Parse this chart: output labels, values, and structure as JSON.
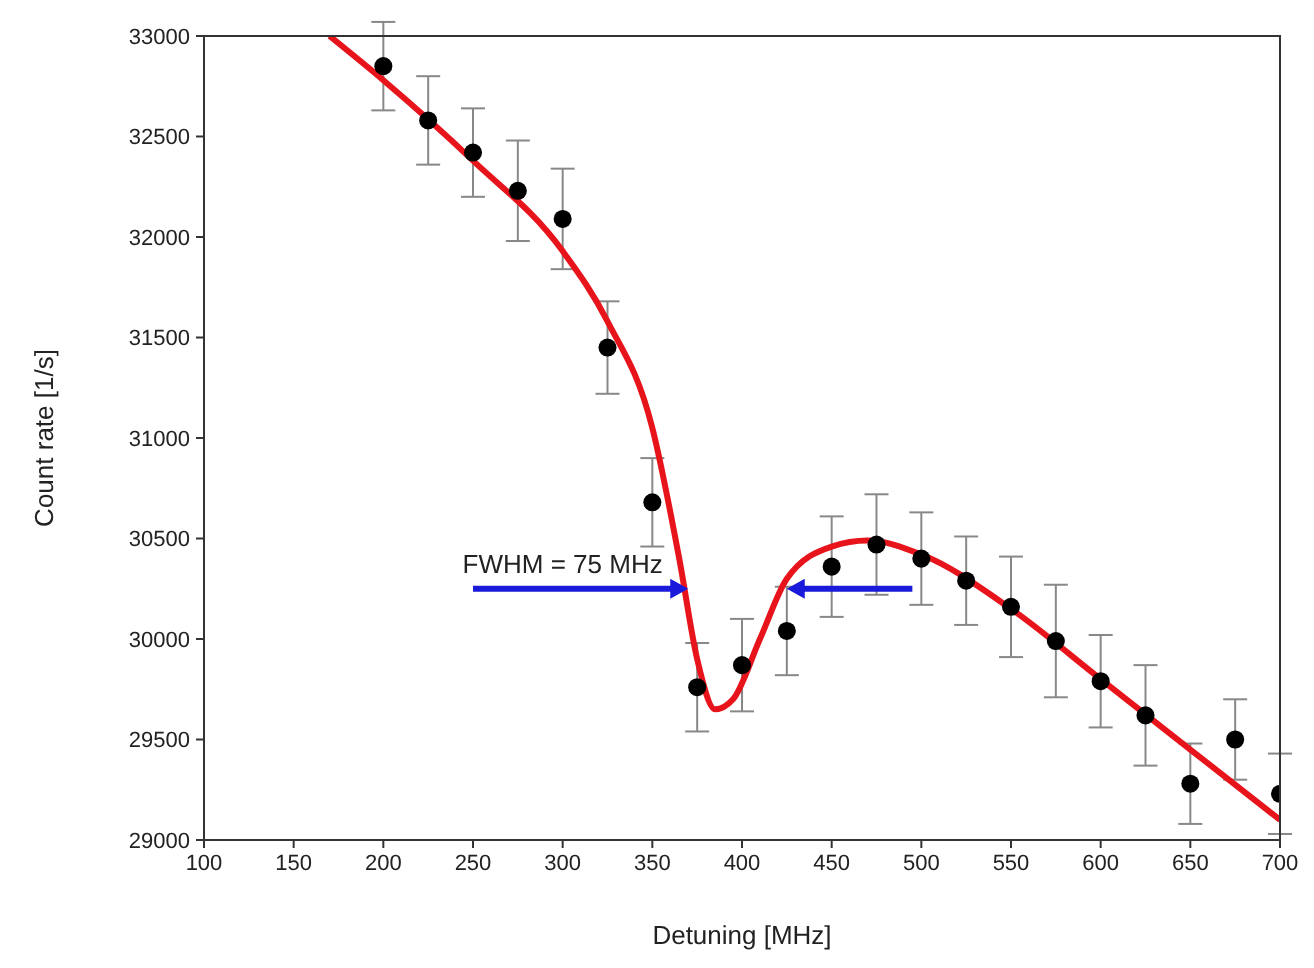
{
  "chart_data": {
    "type": "scatter",
    "xlabel": "Detuning [MHz]",
    "ylabel": "Count rate [1/s]",
    "xlim": [
      100,
      700
    ],
    "xticks": [
      100,
      150,
      200,
      250,
      300,
      350,
      400,
      450,
      500,
      550,
      600,
      650,
      700
    ],
    "ylim": [
      29000,
      33000
    ],
    "yticks": [
      29000,
      29500,
      30000,
      30500,
      31000,
      31500,
      32000,
      32500,
      33000
    ],
    "annotations": [
      "FWHM = 75 MHz"
    ],
    "series": [
      {
        "color": "#000000",
        "marker": "circle",
        "x": [
          200,
          225,
          250,
          275,
          300,
          325,
          350,
          375,
          400,
          425,
          450,
          475,
          500,
          525,
          550,
          575,
          600,
          625,
          650,
          675,
          700
        ],
        "values": [
          32850,
          32580,
          32420,
          32230,
          32090,
          31450,
          30680,
          29760,
          29870,
          30040,
          30360,
          30470,
          30400,
          30290,
          30160,
          29990,
          29790,
          29620,
          29280,
          29500,
          29230
        ],
        "errors": [
          220,
          220,
          220,
          250,
          250,
          230,
          220,
          220,
          230,
          220,
          250,
          250,
          230,
          220,
          250,
          280,
          230,
          250,
          200,
          200,
          200
        ]
      },
      {
        "type": "line",
        "color": "#e8141c",
        "marker": "none",
        "line_style": "solid",
        "x": [
          170,
          200,
          250,
          300,
          325,
          350,
          365,
          375,
          385,
          395,
          410,
          425,
          450,
          470,
          500,
          550,
          600,
          650,
          700
        ],
        "values": [
          33000,
          32780,
          32380,
          31930,
          31580,
          31050,
          30400,
          29900,
          29650,
          29700,
          30000,
          30300,
          30460,
          30490,
          30420,
          30150,
          29800,
          29450,
          29100
        ]
      }
    ]
  }
}
